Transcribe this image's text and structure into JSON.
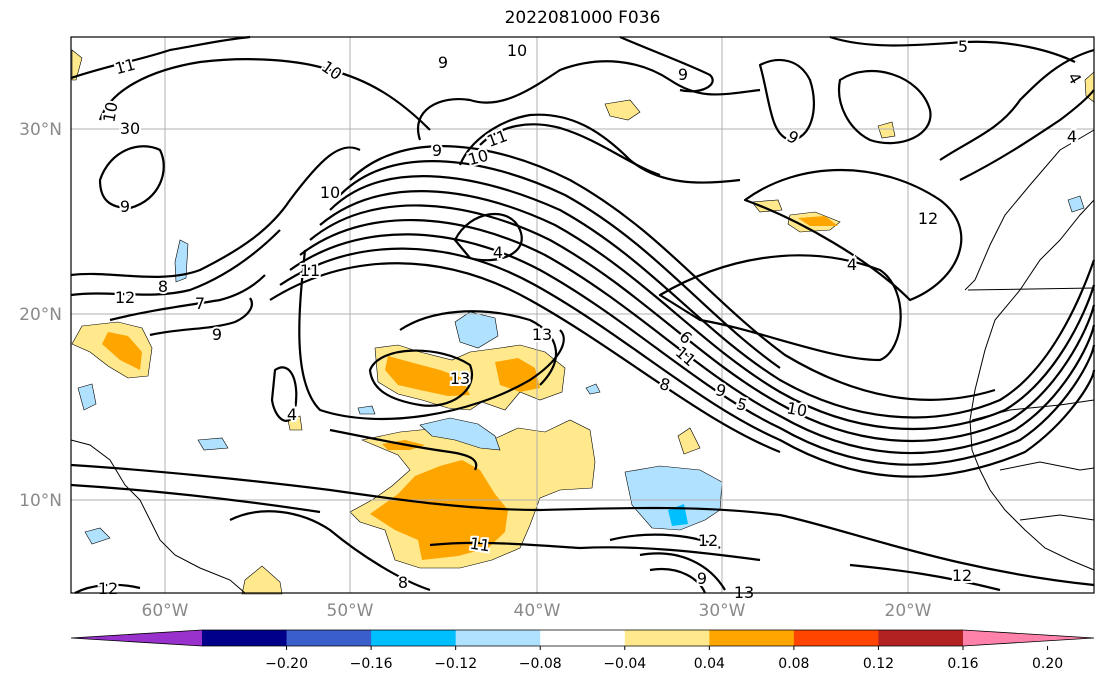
{
  "title": "2022081000 F036",
  "map": {
    "lat_labels": [
      "30°N",
      "20°N",
      "10°N"
    ],
    "lon_labels": [
      "60°W",
      "50°W",
      "40°W",
      "30°W",
      "20°W"
    ],
    "contour_labels": [
      "11",
      "10",
      "9",
      "10",
      "9",
      "5",
      "4",
      "10",
      "30",
      "9",
      "11",
      "10",
      "9",
      "9",
      "10",
      "8",
      "7",
      "9",
      "12",
      "11",
      "4",
      "4",
      "4",
      "12",
      "13",
      "13",
      "4",
      "6",
      "11",
      "8",
      "9",
      "5",
      "10",
      "12",
      "11",
      "8",
      "9",
      "13",
      "12",
      "12"
    ],
    "grid": true
  },
  "colorbar": {
    "tick_labels": [
      "−0.20",
      "−0.16",
      "−0.12",
      "−0.08",
      "−0.04",
      "0.04",
      "0.08",
      "0.12",
      "0.16",
      "0.20"
    ],
    "colors": [
      "#9932cc",
      "#00008b",
      "#3a5fcd",
      "#00bfff",
      "#b0e2ff",
      "#ffffff",
      "#ffe98c",
      "#ffa500",
      "#ff4500",
      "#b22222",
      "#ff82ab"
    ]
  }
}
